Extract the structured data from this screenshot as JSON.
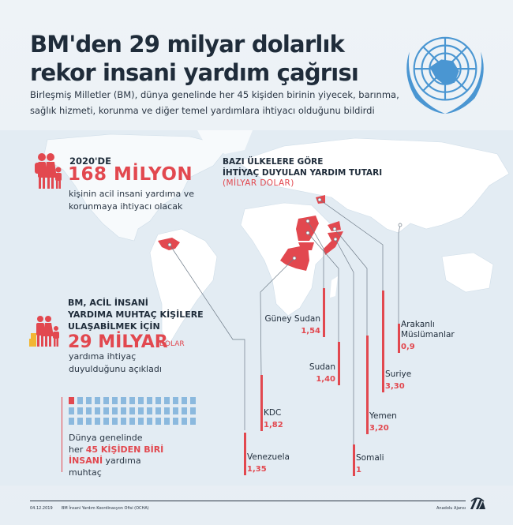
{
  "header": {
    "title_line1": "BM'den 29 milyar dolarlık",
    "title_line2": "rekor insani yardım çağrısı",
    "subtitle": "Birleşmiş Milletler (BM), dünya genelinde her 45 kişiden birinin yiyecek, barınma, sağlık hizmeti, korunma ve diğer temel yardımlara ihtiyacı olduğunu bildirdi",
    "logo_icon": "un-emblem-icon"
  },
  "block1": {
    "icon": "family-icon",
    "year_label": "2020'DE",
    "big_number": "168 MİLYON",
    "description": "kişinin acil insani yardıma ve korunmaya ihtiyacı olacak"
  },
  "block2": {
    "icon": "family-with-boxes-icon",
    "heading_line1": "BM, ACİL İNSANİ",
    "heading_line2": "YARDIMA MUHTAÇ KİŞİLERE",
    "heading_line3": "ULAŞABİLMEK İÇİN",
    "big_number": "29 MİLYAR",
    "unit": "DOLAR",
    "description_line1": "yardıma ihtiyaç",
    "description_line2": "duyulduğunu açıkladı"
  },
  "block3": {
    "grid_total": 45,
    "grid_highlighted": 1,
    "text_line1": "Dünya genelinde",
    "text_prefix": "her ",
    "text_highlight1": "45 KİŞİDEN BİRİ",
    "text_highlight2": "İNSANİ",
    "text_suffix": " yardıma",
    "text_line4": "muhtaç"
  },
  "chart_heading": {
    "line1": "BAZI ÜLKELERE GÖRE",
    "line2": "İHTİYAÇ DUYULAN YARDIM TUTARI",
    "unit": "(MİLYAR DOLAR)"
  },
  "chart_data": {
    "type": "bar",
    "title": "BAZI ÜLKELERE GÖRE İHTİYAÇ DUYULAN YARDIM TUTARI",
    "ylabel": "Milyar Dolar",
    "categories": [
      "Venezuela",
      "KDC",
      "Güney Sudan",
      "Sudan",
      "Somali",
      "Yemen",
      "Suriye",
      "Arakanlı Müslümanlar"
    ],
    "values": [
      1.35,
      1.82,
      1.54,
      1.4,
      1,
      3.2,
      3.3,
      0.9
    ],
    "value_labels": [
      "1,35",
      "1,82",
      "1,54",
      "1,40",
      "1",
      "3,20",
      "3,30",
      "0,9"
    ],
    "colors": {
      "bar": "#e2484f",
      "leader": "#7d8a96",
      "highlight_country": "#e2484f"
    }
  },
  "bars": [
    {
      "label": "Venezuela",
      "value": "1,35"
    },
    {
      "label": "KDC",
      "value": "1,82"
    },
    {
      "label": "Güney Sudan",
      "value": "1,54"
    },
    {
      "label": "Sudan",
      "value": "1,40"
    },
    {
      "label": "Somali",
      "value": "1"
    },
    {
      "label": "Yemen",
      "value": "3,20"
    },
    {
      "label": "Suriye",
      "value": "3,30"
    },
    {
      "label": "Arakanlı",
      "label2": "Müslümanlar",
      "value": "0,9"
    }
  ],
  "footer": {
    "date": "04.12.2019",
    "source": "BM İnsani Yardım Koordinasyon Ofisi (OCHA)",
    "agency": "Anadolu Ajansı",
    "logo_icon": "aa-logo-icon"
  },
  "colors": {
    "accent": "#e2484f",
    "dark_text": "#1f2c3a",
    "un_blue": "#4a96d2",
    "grid_blue": "#8bb9de",
    "ocean": "#dde9f1",
    "land": "#ffffff",
    "box_yellow": "#f2b634"
  }
}
